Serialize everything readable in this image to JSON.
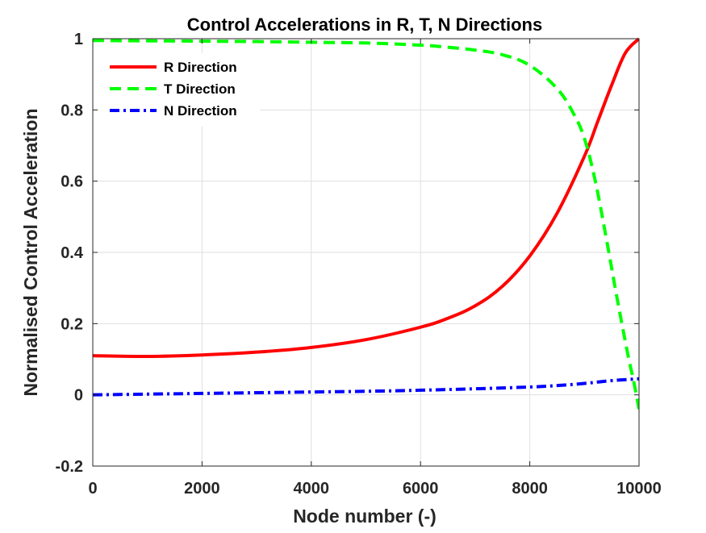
{
  "chart_data": {
    "type": "line",
    "title": "Control Accelerations in R, T, N Directions",
    "xlabel": "Node number (-)",
    "ylabel": "Normalised Control Acceleration",
    "xlim": [
      0,
      10000
    ],
    "ylim": [
      -0.2,
      1
    ],
    "xticks": [
      0,
      2000,
      4000,
      6000,
      8000,
      10000
    ],
    "yticks": [
      -0.2,
      0,
      0.2,
      0.4,
      0.6,
      0.8,
      1
    ],
    "x_tick_labels": [
      "0",
      "2000",
      "4000",
      "6000",
      "8000",
      "10000"
    ],
    "y_tick_labels": [
      "-0.2",
      "0",
      "0.2",
      "0.4",
      "0.6",
      "0.8",
      "1"
    ],
    "grid": true,
    "legend_position": "top-left",
    "series": [
      {
        "name": "R Direction",
        "color": "#ff0000",
        "style": "solid",
        "x": [
          0,
          1000,
          2000,
          3000,
          4000,
          5000,
          6000,
          6500,
          7000,
          7500,
          8000,
          8500,
          9000,
          9250,
          9500,
          9750,
          10000
        ],
        "y": [
          0.11,
          0.108,
          0.112,
          0.12,
          0.133,
          0.155,
          0.19,
          0.215,
          0.25,
          0.305,
          0.39,
          0.51,
          0.67,
          0.77,
          0.87,
          0.96,
          1.0
        ]
      },
      {
        "name": "T Direction",
        "color": "#00ff00",
        "style": "dashed",
        "x": [
          0,
          1000,
          2000,
          3000,
          4000,
          5000,
          6000,
          6500,
          7000,
          7500,
          8000,
          8500,
          8800,
          9000,
          9200,
          9400,
          9600,
          9800,
          9900,
          10000
        ],
        "y": [
          0.995,
          0.994,
          0.993,
          0.992,
          0.99,
          0.988,
          0.982,
          0.976,
          0.968,
          0.955,
          0.925,
          0.86,
          0.79,
          0.72,
          0.6,
          0.44,
          0.27,
          0.11,
          0.04,
          -0.04
        ]
      },
      {
        "name": "N Direction",
        "color": "#0000ff",
        "style": "dashdot",
        "x": [
          0,
          1000,
          2000,
          3000,
          4000,
          5000,
          6000,
          7000,
          8000,
          8500,
          9000,
          9500,
          10000
        ],
        "y": [
          0.0,
          0.002,
          0.004,
          0.006,
          0.008,
          0.01,
          0.013,
          0.017,
          0.022,
          0.026,
          0.032,
          0.04,
          0.045
        ]
      }
    ]
  }
}
